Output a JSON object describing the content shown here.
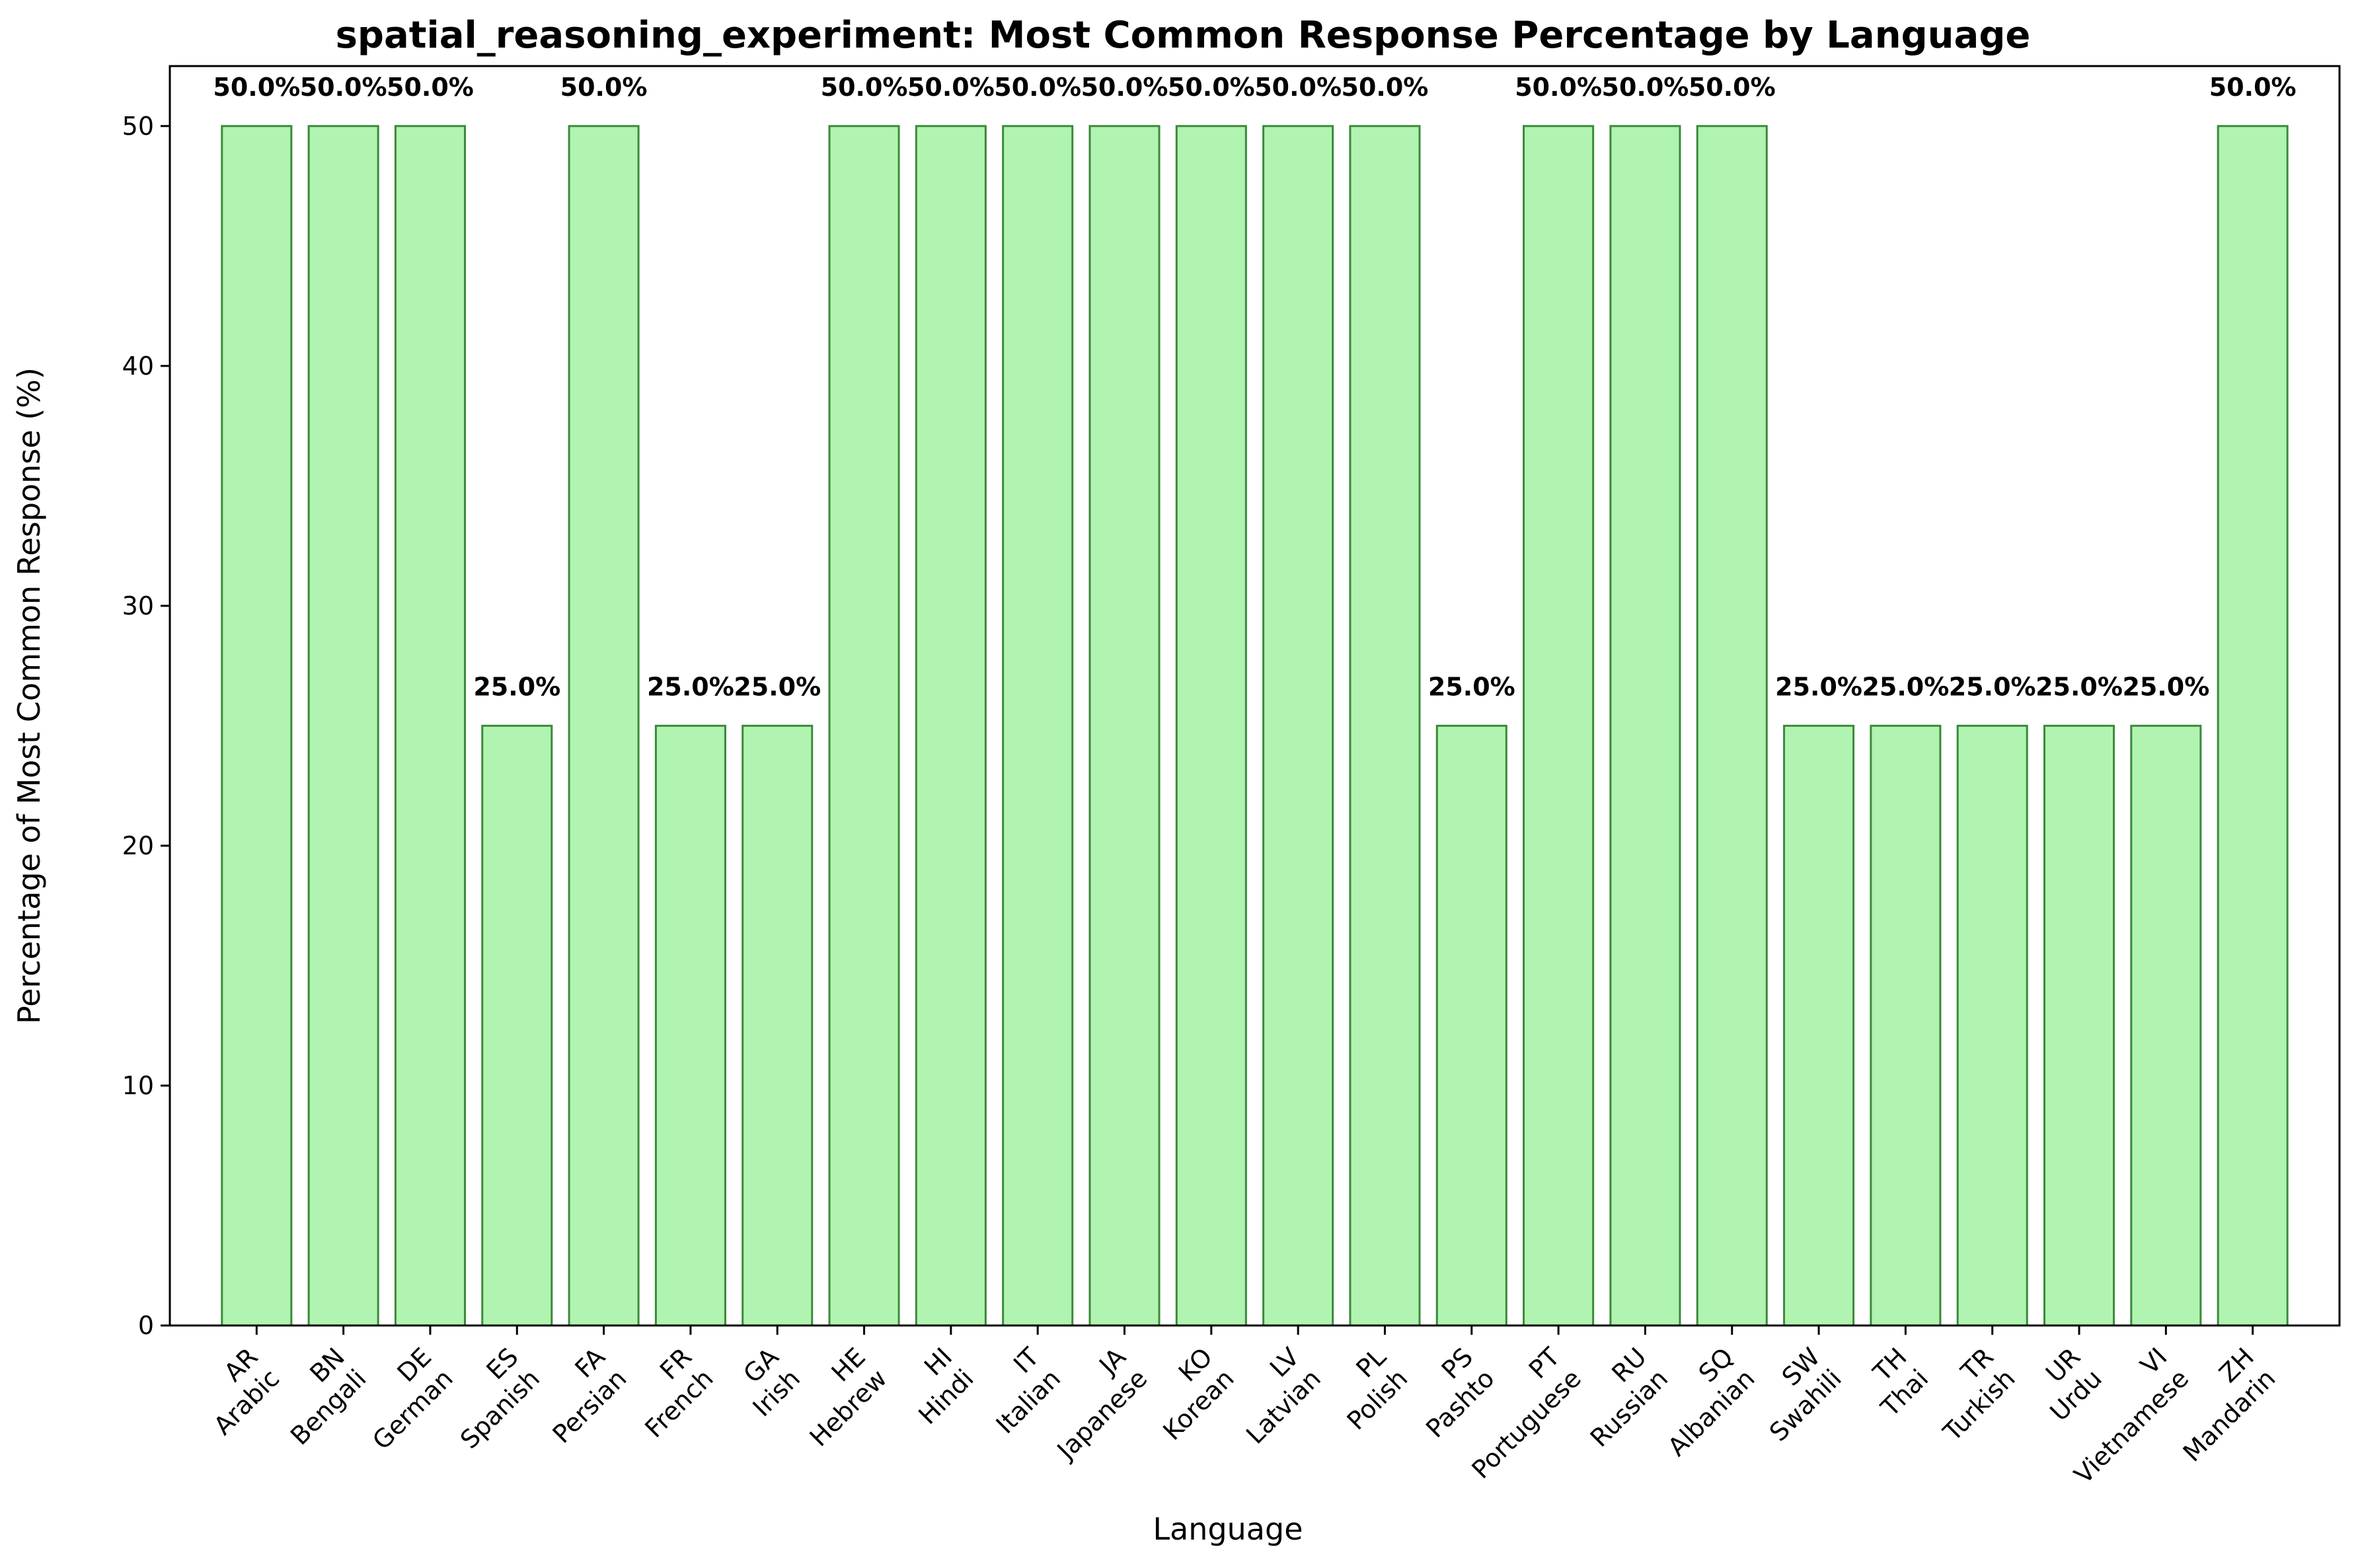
{
  "colors": {
    "bar_fill": "#b1f3b1",
    "bar_edge": "#3a8a3a",
    "axis": "#000000",
    "background": "#ffffff"
  },
  "chart_data": {
    "type": "bar",
    "title": "spatial_reasoning_experiment: Most Common Response Percentage by Language",
    "xlabel": "Language",
    "ylabel": "Percentage of Most Common Response (%)",
    "ylim": [
      0,
      52.5
    ],
    "yticks": [
      0,
      10,
      20,
      30,
      40,
      50
    ],
    "grid": false,
    "legend": "none",
    "categories": [
      {
        "code": "AR",
        "name": "Arabic"
      },
      {
        "code": "BN",
        "name": "Bengali"
      },
      {
        "code": "DE",
        "name": "German"
      },
      {
        "code": "ES",
        "name": "Spanish"
      },
      {
        "code": "FA",
        "name": "Persian"
      },
      {
        "code": "FR",
        "name": "French"
      },
      {
        "code": "GA",
        "name": "Irish"
      },
      {
        "code": "HE",
        "name": "Hebrew"
      },
      {
        "code": "HI",
        "name": "Hindi"
      },
      {
        "code": "IT",
        "name": "Italian"
      },
      {
        "code": "JA",
        "name": "Japanese"
      },
      {
        "code": "KO",
        "name": "Korean"
      },
      {
        "code": "LV",
        "name": "Latvian"
      },
      {
        "code": "PL",
        "name": "Polish"
      },
      {
        "code": "PS",
        "name": "Pashto"
      },
      {
        "code": "PT",
        "name": "Portuguese"
      },
      {
        "code": "RU",
        "name": "Russian"
      },
      {
        "code": "SQ",
        "name": "Albanian"
      },
      {
        "code": "SW",
        "name": "Swahili"
      },
      {
        "code": "TH",
        "name": "Thai"
      },
      {
        "code": "TR",
        "name": "Turkish"
      },
      {
        "code": "UR",
        "name": "Urdu"
      },
      {
        "code": "VI",
        "name": "Vietnamese"
      },
      {
        "code": "ZH",
        "name": "Mandarin"
      }
    ],
    "values": [
      50,
      50,
      50,
      25,
      50,
      25,
      25,
      50,
      50,
      50,
      50,
      50,
      50,
      50,
      25,
      50,
      50,
      50,
      25,
      25,
      25,
      25,
      25,
      50
    ],
    "data_labels": [
      "50.0%",
      "50.0%",
      "50.0%",
      "25.0%",
      "50.0%",
      "25.0%",
      "25.0%",
      "50.0%",
      "50.0%",
      "50.0%",
      "50.0%",
      "50.0%",
      "50.0%",
      "50.0%",
      "25.0%",
      "50.0%",
      "50.0%",
      "50.0%",
      "25.0%",
      "25.0%",
      "25.0%",
      "25.0%",
      "25.0%",
      "50.0%"
    ]
  }
}
